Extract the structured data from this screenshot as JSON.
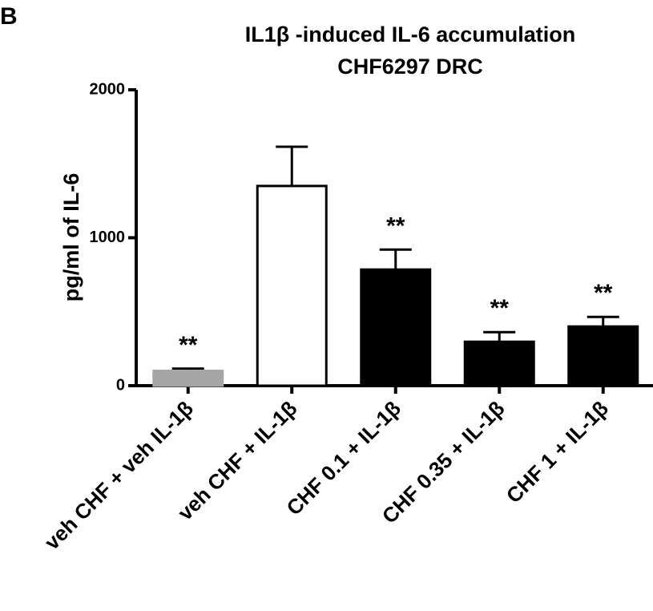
{
  "panel_label": "B",
  "chart_data": {
    "type": "bar",
    "title": [
      "IL1β -induced IL-6 accumulation",
      "CHF6297 DRC"
    ],
    "y_label": "pg/ml of IL-6",
    "categories": [
      "veh CHF + veh IL-1β",
      "veh CHF + IL-1β",
      "CHF 0.1 + IL-1β",
      "CHF 0.35 + IL-1β",
      "CHF 1 + IL-1β"
    ],
    "values": [
      100,
      1350,
      785,
      297,
      400
    ],
    "errors": [
      15,
      265,
      135,
      65,
      65
    ],
    "colors": [
      "#a6a6a6",
      "#ffffff",
      "#000000",
      "#000000",
      "#000000"
    ],
    "annotations": [
      "**",
      null,
      "**",
      "**",
      "**"
    ],
    "ylim": [
      0,
      2000
    ],
    "yticks": [
      0,
      1000,
      2000
    ]
  }
}
